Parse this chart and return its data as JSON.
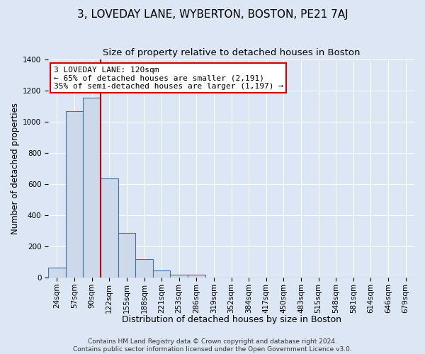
{
  "title": "3, LOVEDAY LANE, WYBERTON, BOSTON, PE21 7AJ",
  "subtitle": "Size of property relative to detached houses in Boston",
  "xlabel": "Distribution of detached houses by size in Boston",
  "ylabel": "Number of detached properties",
  "bar_labels": [
    "24sqm",
    "57sqm",
    "90sqm",
    "122sqm",
    "155sqm",
    "188sqm",
    "221sqm",
    "253sqm",
    "286sqm",
    "319sqm",
    "352sqm",
    "384sqm",
    "417sqm",
    "450sqm",
    "483sqm",
    "515sqm",
    "548sqm",
    "581sqm",
    "614sqm",
    "646sqm",
    "679sqm"
  ],
  "bar_values": [
    65,
    1070,
    1155,
    635,
    285,
    120,
    47,
    20,
    18,
    0,
    0,
    0,
    0,
    0,
    0,
    0,
    0,
    0,
    0,
    0,
    0
  ],
  "bar_color": "#ccd9ea",
  "bar_edge_color": "#4472a8",
  "vline_color": "#cc0000",
  "annotation_title": "3 LOVEDAY LANE: 120sqm",
  "annotation_line1": "← 65% of detached houses are smaller (2,191)",
  "annotation_line2": "35% of semi-detached houses are larger (1,197) →",
  "annotation_box_color": "#ffffff",
  "annotation_box_edge": "#cc0000",
  "ylim": [
    0,
    1400
  ],
  "yticks": [
    0,
    200,
    400,
    600,
    800,
    1000,
    1200,
    1400
  ],
  "footer1": "Contains HM Land Registry data © Crown copyright and database right 2024.",
  "footer2": "Contains public sector information licensed under the Open Government Licence v3.0.",
  "bg_color": "#dce6f4",
  "plot_bg_color": "#dce6f4",
  "grid_color": "#ffffff",
  "title_fontsize": 11,
  "subtitle_fontsize": 9.5,
  "xlabel_fontsize": 9,
  "ylabel_fontsize": 8.5,
  "tick_fontsize": 7.5,
  "footer_fontsize": 6.5,
  "annotation_fontsize": 8.0
}
